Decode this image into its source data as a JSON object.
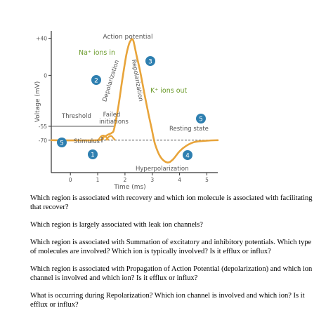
{
  "chart_data": {
    "type": "line",
    "xlabel": "Time (ms)",
    "ylabel": "Voltage (mV)",
    "xlim": [
      -0.7,
      5.4
    ],
    "ylim": [
      -105,
      48
    ],
    "x_ticks": [
      "0",
      "1",
      "2",
      "3",
      "4",
      "5"
    ],
    "y_ticks": [
      "+40",
      "0",
      "-55",
      "-70"
    ],
    "series": [
      {
        "points": [
          [
            -0.7,
            -70
          ],
          [
            1.0,
            -70
          ],
          [
            1.2,
            -67
          ],
          [
            1.38,
            -64
          ],
          [
            1.52,
            -62
          ],
          [
            1.6,
            -58
          ],
          [
            1.75,
            -35
          ],
          [
            1.9,
            -5
          ],
          [
            2.05,
            22
          ],
          [
            2.15,
            34
          ],
          [
            2.22,
            38
          ],
          [
            2.27,
            39
          ],
          [
            2.32,
            36
          ],
          [
            2.42,
            22
          ],
          [
            2.55,
            5
          ],
          [
            2.7,
            -18
          ],
          [
            2.85,
            -40
          ],
          [
            2.98,
            -58
          ],
          [
            3.1,
            -74
          ],
          [
            3.3,
            -88
          ],
          [
            3.55,
            -94
          ],
          [
            3.75,
            -91
          ],
          [
            4.0,
            -82
          ],
          [
            4.25,
            -76
          ],
          [
            4.55,
            -72
          ],
          [
            5.0,
            -70.5
          ],
          [
            5.4,
            -70
          ]
        ],
        "color": "#e8a43a"
      }
    ],
    "failed_initiation_bumps": [
      [
        [
          1.02,
          -70
        ],
        [
          1.12,
          -66
        ],
        [
          1.22,
          -65
        ],
        [
          1.32,
          -67
        ],
        [
          1.4,
          -70
        ]
      ],
      [
        [
          1.3,
          -70
        ],
        [
          1.4,
          -66.5
        ],
        [
          1.5,
          -65.5
        ],
        [
          1.58,
          -68
        ],
        [
          1.64,
          -70
        ]
      ]
    ],
    "threshold_mV": -55,
    "resting_mV": -70,
    "annotations": {
      "action_potential": "Action potential",
      "na_ions_in": "Na⁺ ions in",
      "k_ions_out": "K⁺ ions out",
      "depolarization": "Depolarization",
      "repolarization": "Repolarization",
      "threshold": "Threshold",
      "failed_initiations": "Failed\ninitiations",
      "resting_state": "Resting state",
      "stimulus": "Stimulus",
      "hyperpolarization": "Hyperpolarization"
    },
    "markers": [
      "1",
      "2",
      "3",
      "4",
      "5",
      "5"
    ],
    "colors": {
      "curve": "#e8a43a",
      "marker": "#2e7fb0",
      "text_green": "#6a9a2a",
      "text_gray": "#555555",
      "axis": "#333333",
      "dash": "#555555"
    }
  },
  "questions": [
    "Which region is associated with recovery and which ion molecule is associated with facilitating that recover?",
    "Which region is largely associated with leak ion channels?",
    "Which region is associated with Summation of excitatory and inhibitory potentials. Which type of molecules are involved? Which ion is typically involved? Is it efflux or influx?",
    "Which region is associated with Propagation of Action Potential (depolarization) and which ion channel is involved and which ion? Is it efflux or influx?",
    "What is occurring during Repolarization? Which ion channel is involved and which ion? Is it efflux or influx?"
  ]
}
